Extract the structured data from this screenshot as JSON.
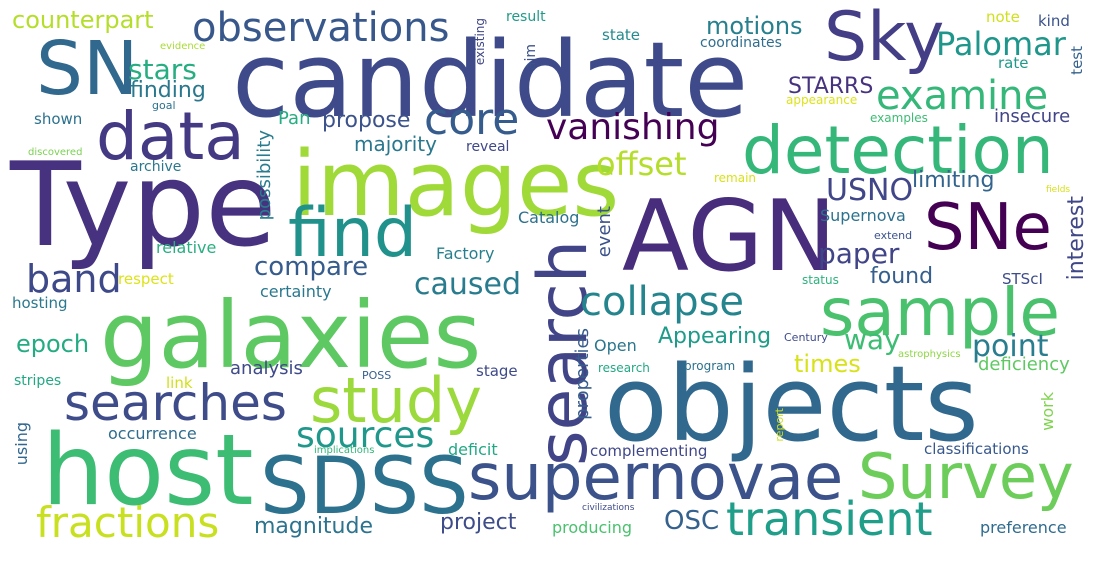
{
  "words": [
    {
      "text": "candidate",
      "color": "#3e4a89"
    },
    {
      "text": "Type",
      "color": "#46327e"
    },
    {
      "text": "AGN",
      "color": "#472d7b"
    },
    {
      "text": "objects",
      "color": "#31688e"
    },
    {
      "text": "galaxies",
      "color": "#5ec962"
    },
    {
      "text": "images",
      "color": "#a0da39"
    },
    {
      "text": "host",
      "color": "#3dbc74"
    },
    {
      "text": "search",
      "color": "#414487"
    },
    {
      "text": "sample",
      "color": "#4ac16d"
    },
    {
      "text": "SDSS",
      "color": "#2c728e"
    },
    {
      "text": "supernovae",
      "color": "#3b528b"
    },
    {
      "text": "Survey",
      "color": "#6ccd5a"
    },
    {
      "text": "detection",
      "color": "#35b779"
    },
    {
      "text": "data",
      "color": "#443983"
    },
    {
      "text": "SN",
      "color": "#31688e"
    },
    {
      "text": "Sky",
      "color": "#433e85"
    },
    {
      "text": "SNe",
      "color": "#440154"
    },
    {
      "text": "find",
      "color": "#21918c"
    },
    {
      "text": "study",
      "color": "#9bd93c"
    },
    {
      "text": "searches",
      "color": "#3e4c8a"
    },
    {
      "text": "transient",
      "color": "#1f9e89"
    },
    {
      "text": "fractions",
      "color": "#c8e020"
    },
    {
      "text": "observations",
      "color": "#38588c"
    },
    {
      "text": "core",
      "color": "#365c8d"
    },
    {
      "text": "collapse",
      "color": "#25858e"
    },
    {
      "text": "examine",
      "color": "#35b779"
    },
    {
      "text": "Palomar",
      "color": "#1f968b"
    },
    {
      "text": "vanishing",
      "color": "#440154"
    },
    {
      "text": "sources",
      "color": "#1f978b"
    },
    {
      "text": "band",
      "color": "#3e4989"
    },
    {
      "text": "offset",
      "color": "#b5de2b"
    },
    {
      "text": "USNO",
      "color": "#404688"
    },
    {
      "text": "caused",
      "color": "#287c8e"
    },
    {
      "text": "paper",
      "color": "#414487"
    },
    {
      "text": "point",
      "color": "#287d8e"
    },
    {
      "text": "way",
      "color": "#3dbc74"
    },
    {
      "text": "compare",
      "color": "#365c8d"
    },
    {
      "text": "stars",
      "color": "#26ad81"
    },
    {
      "text": "finding",
      "color": "#2a788e"
    },
    {
      "text": "counterpart",
      "color": "#b5de2b"
    },
    {
      "text": "motions",
      "color": "#27808e"
    },
    {
      "text": "STARRS",
      "color": "#46327e"
    },
    {
      "text": "project",
      "color": "#3e4c8a"
    },
    {
      "text": "OSC",
      "color": "#34618d"
    },
    {
      "text": "magnitude",
      "color": "#2c738e"
    },
    {
      "text": "Appearing",
      "color": "#1e9c89"
    },
    {
      "text": "times",
      "color": "#d8e219"
    },
    {
      "text": "epoch",
      "color": "#25ab82"
    },
    {
      "text": "limiting",
      "color": "#32648e"
    },
    {
      "text": "propose",
      "color": "#3b528b"
    },
    {
      "text": "majority",
      "color": "#2a788e"
    },
    {
      "text": "interest",
      "color": "#3f4788"
    },
    {
      "text": "found",
      "color": "#355f8d"
    },
    {
      "text": "deficiency",
      "color": "#5ec962"
    },
    {
      "text": "possibility",
      "color": "#287c8e"
    },
    {
      "text": "properties",
      "color": "#365d8d"
    },
    {
      "text": "analysis",
      "color": "#3e4a89"
    },
    {
      "text": "insecure",
      "color": "#414487"
    },
    {
      "text": "event",
      "color": "#3b528b"
    },
    {
      "text": "Catalog",
      "color": "#2c718e"
    },
    {
      "text": "Factory",
      "color": "#277f8e"
    },
    {
      "text": "Supernova",
      "color": "#2c718e"
    },
    {
      "text": "relative",
      "color": "#29af7f"
    },
    {
      "text": "certainty",
      "color": "#2a788e"
    },
    {
      "text": "Open",
      "color": "#2a768e"
    },
    {
      "text": "occurrence",
      "color": "#2f6c8e"
    },
    {
      "text": "deficit",
      "color": "#22a884"
    },
    {
      "text": "complementing",
      "color": "#3f4788"
    },
    {
      "text": "classifications",
      "color": "#38588c"
    },
    {
      "text": "preference",
      "color": "#2f6b8e"
    },
    {
      "text": "producing",
      "color": "#4ac16d"
    },
    {
      "text": "work",
      "color": "#7fd34e"
    },
    {
      "text": "using",
      "color": "#31678e"
    },
    {
      "text": "hosting",
      "color": "#2a788e"
    },
    {
      "text": "respect",
      "color": "#dde318"
    },
    {
      "text": "link",
      "color": "#d0e11c"
    },
    {
      "text": "stripes",
      "color": "#22a884"
    },
    {
      "text": "shown",
      "color": "#2c718e"
    },
    {
      "text": "reveal",
      "color": "#3f4889"
    },
    {
      "text": "archive",
      "color": "#2a788e"
    },
    {
      "text": "Pan",
      "color": "#26ad81"
    },
    {
      "text": "state",
      "color": "#238a8d"
    },
    {
      "text": "coordinates",
      "color": "#2e6e8e"
    },
    {
      "text": "note",
      "color": "#d0e11c"
    },
    {
      "text": "kind",
      "color": "#3b528b"
    },
    {
      "text": "test",
      "color": "#34618d"
    },
    {
      "text": "rate",
      "color": "#1f9a8a"
    },
    {
      "text": "result",
      "color": "#1f9a8a"
    },
    {
      "text": "aim",
      "color": "#3b528b"
    },
    {
      "text": "existing",
      "color": "#3f4788"
    },
    {
      "text": "evidence",
      "color": "#a8db34"
    },
    {
      "text": "goal",
      "color": "#2c728e"
    },
    {
      "text": "discovered",
      "color": "#7ad151"
    },
    {
      "text": "appearance",
      "color": "#dde318"
    },
    {
      "text": "examples",
      "color": "#3dbc74"
    },
    {
      "text": "remain",
      "color": "#d8e219"
    },
    {
      "text": "fields",
      "color": "#d8e219"
    },
    {
      "text": "extend",
      "color": "#3b528b"
    },
    {
      "text": "status",
      "color": "#2db27d"
    },
    {
      "text": "STScI",
      "color": "#3e4c8a"
    },
    {
      "text": "Century",
      "color": "#3e4c8a"
    },
    {
      "text": "astrophysics",
      "color": "#8ed645"
    },
    {
      "text": "program",
      "color": "#2c718e"
    },
    {
      "text": "research",
      "color": "#22a884"
    },
    {
      "text": "POSS",
      "color": "#355f8d"
    },
    {
      "text": "stage",
      "color": "#3e4a89"
    },
    {
      "text": "implications",
      "color": "#32b67a"
    },
    {
      "text": "report",
      "color": "#d0e11c"
    },
    {
      "text": "civilizations",
      "color": "#3e4c8a"
    }
  ]
}
